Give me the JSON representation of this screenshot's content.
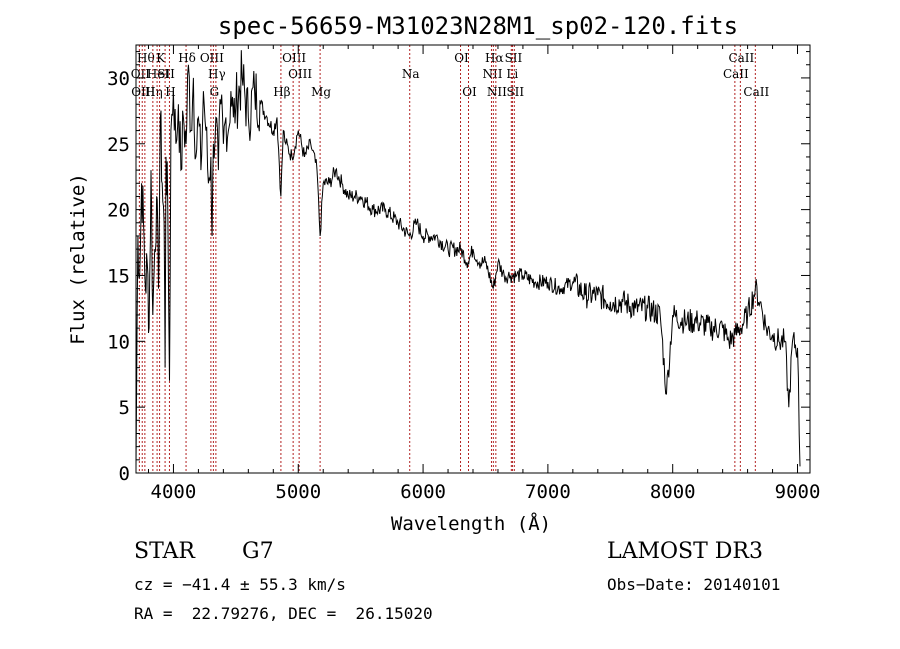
{
  "chart_data": {
    "type": "line",
    "title": "spec-56659-M31023N28M1_sp02-120.fits",
    "xlabel": "Wavelength (Å)",
    "ylabel": "Flux (relative)",
    "xlim": [
      3700,
      9100
    ],
    "ylim": [
      0,
      32.5
    ],
    "xticks": [
      4000,
      5000,
      6000,
      7000,
      8000,
      9000
    ],
    "yticks": [
      0,
      5,
      10,
      15,
      20,
      25,
      30
    ],
    "grid": false,
    "line_color": "#000000",
    "marker_color": "#b22222",
    "series": [
      {
        "name": "flux",
        "x": [
          3700,
          3715,
          3730,
          3745,
          3760,
          3775,
          3790,
          3805,
          3820,
          3835,
          3850,
          3865,
          3880,
          3895,
          3910,
          3925,
          3933,
          3940,
          3955,
          3968,
          3980,
          4000,
          4020,
          4040,
          4060,
          4080,
          4101,
          4120,
          4140,
          4160,
          4180,
          4200,
          4220,
          4240,
          4260,
          4280,
          4300,
          4310,
          4320,
          4340,
          4360,
          4380,
          4400,
          4420,
          4440,
          4460,
          4480,
          4500,
          4550,
          4600,
          4650,
          4700,
          4750,
          4800,
          4830,
          4861,
          4880,
          4900,
          4950,
          5000,
          5050,
          5100,
          5150,
          5175,
          5200,
          5250,
          5300,
          5350,
          5400,
          5450,
          5500,
          5600,
          5700,
          5800,
          5890,
          5950,
          6000,
          6100,
          6200,
          6300,
          6360,
          6400,
          6450,
          6500,
          6563,
          6600,
          6650,
          6700,
          6750,
          6800,
          6900,
          7000,
          7100,
          7200,
          7300,
          7400,
          7500,
          7600,
          7700,
          7800,
          7900,
          7950,
          8000,
          8100,
          8200,
          8300,
          8400,
          8450,
          8500,
          8542,
          8600,
          8662,
          8700,
          8750,
          8800,
          8850,
          8900,
          8930,
          8960,
          9000,
          9020
        ],
        "y": [
          0.5,
          18,
          15,
          22,
          19,
          14,
          16,
          11,
          23,
          12,
          17,
          21,
          14,
          27,
          22,
          19,
          8,
          24,
          20,
          7,
          26,
          29,
          25,
          28,
          23,
          27,
          25,
          31,
          26,
          30,
          24,
          27,
          23,
          29,
          26,
          22,
          24,
          18,
          25,
          27,
          23,
          28,
          25,
          27,
          26,
          29,
          27,
          28,
          30,
          27,
          29,
          28,
          27,
          26,
          27,
          21,
          26,
          25,
          24,
          26,
          24,
          25,
          23,
          18,
          22,
          22,
          23,
          22,
          21,
          21,
          21,
          20,
          20,
          19,
          18,
          19,
          18,
          18,
          17,
          17,
          16,
          17,
          16,
          16,
          14,
          16,
          15,
          15,
          15,
          15,
          14.5,
          14.5,
          14,
          14.5,
          13.5,
          13.5,
          13,
          13,
          12.5,
          12.5,
          12,
          6,
          12,
          11.5,
          11.5,
          11,
          11,
          10,
          10.5,
          11,
          12,
          14,
          13,
          11,
          10.5,
          10,
          10,
          5,
          10,
          9.5,
          0.5
        ]
      }
    ],
    "line_markers": [
      {
        "x": 3727,
        "label": "OII",
        "row": 2
      },
      {
        "x": 3750,
        "label": "OIII",
        "row": 3
      },
      {
        "x": 3771,
        "label": "Hθ",
        "row": 1
      },
      {
        "x": 3835,
        "label": "Hη",
        "row": 3
      },
      {
        "x": 3869,
        "label": "HeI",
        "row": 2
      },
      {
        "x": 3889,
        "label": "K",
        "row": 1
      },
      {
        "x": 3933,
        "label": "SII",
        "row": 2
      },
      {
        "x": 3968,
        "label": "H",
        "row": 3
      },
      {
        "x": 4101,
        "label": "Hδ",
        "row": 1
      },
      {
        "x": 4300,
        "label": "OIII",
        "row": 1
      },
      {
        "x": 4340,
        "label": "Hγ",
        "row": 2
      },
      {
        "x": 4320,
        "label": "G",
        "row": 3
      },
      {
        "x": 4861,
        "label": "Hβ",
        "row": 3
      },
      {
        "x": 4959,
        "label": "OIII",
        "row": 1
      },
      {
        "x": 5007,
        "label": "OIII",
        "row": 2
      },
      {
        "x": 5175,
        "label": "Mg",
        "row": 3
      },
      {
        "x": 5893,
        "label": "Na",
        "row": 2
      },
      {
        "x": 6300,
        "label": "OI",
        "row": 1
      },
      {
        "x": 6364,
        "label": "OI",
        "row": 3
      },
      {
        "x": 6563,
        "label": "Hα",
        "row": 1
      },
      {
        "x": 6548,
        "label": "NII",
        "row": 2
      },
      {
        "x": 6583,
        "label": "NII",
        "row": 3
      },
      {
        "x": 6707,
        "label": "Li",
        "row": 2
      },
      {
        "x": 6716,
        "label": "SII",
        "row": 1
      },
      {
        "x": 6731,
        "label": "SII",
        "row": 3
      },
      {
        "x": 8498,
        "label": "CaII",
        "row": 2
      },
      {
        "x": 8542,
        "label": "CaII",
        "row": 1
      },
      {
        "x": 8662,
        "label": "CaII",
        "row": 3
      }
    ]
  },
  "info": {
    "object_class": "STAR",
    "subclass": "G7",
    "survey": "LAMOST DR3",
    "redshift": "cz = −41.4 ± 55.3 km/s",
    "obs_date": "Obs−Date: 20140101",
    "coords": "RA =  22.79276, DEC =  26.15020"
  }
}
